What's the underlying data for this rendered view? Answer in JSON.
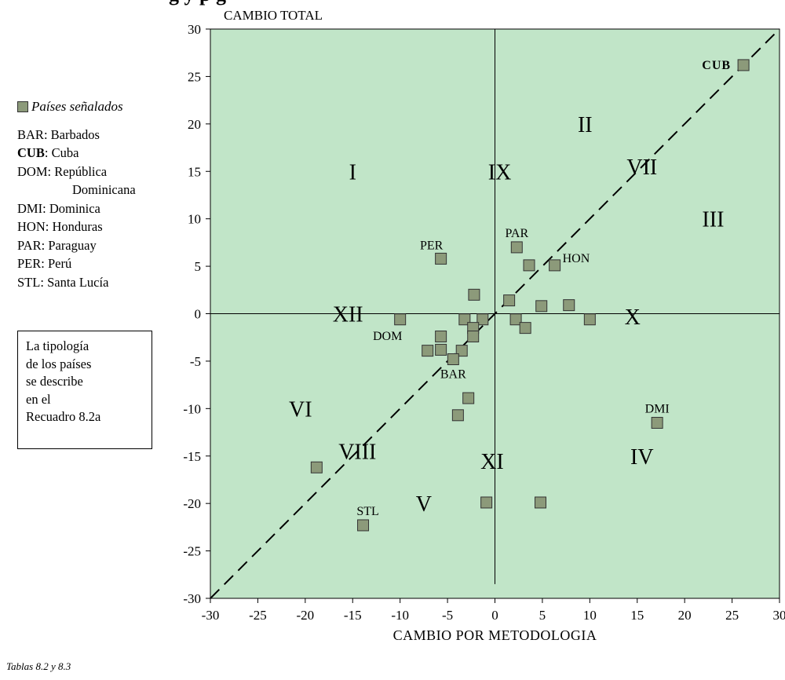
{
  "title_fragment": "g                  y    p                                          g",
  "legend": {
    "header": "Países señalados",
    "entries": [
      {
        "code": "BAR",
        "name": "Barbados",
        "bold": false
      },
      {
        "code": "CUB",
        "name": "Cuba",
        "bold": true
      },
      {
        "code": "DOM",
        "name": "República",
        "bold": false
      },
      {
        "code": "",
        "name": "Dominicana",
        "bold": false
      },
      {
        "code": "DMI",
        "name": "Dominica",
        "bold": false
      },
      {
        "code": "HON",
        "name": "Honduras",
        "bold": false
      },
      {
        "code": "PAR",
        "name": "Paraguay",
        "bold": false
      },
      {
        "code": "PER",
        "name": "Perú",
        "bold": false
      },
      {
        "code": "STL",
        "name": "Santa Lucía",
        "bold": false
      }
    ]
  },
  "note": [
    "La tipología",
    "de los países",
    "se describe",
    "en el",
    "Recuadro 8.2a"
  ],
  "source": "Tablas 8.2 y 8.3",
  "chart_data": {
    "type": "scatter",
    "ylabel": "CAMBIO TOTAL",
    "xlabel": "CAMBIO POR METODOLOGIA",
    "xlim": [
      -30,
      30
    ],
    "ylim": [
      -30,
      30
    ],
    "xticks": [
      -30,
      -25,
      -20,
      -15,
      -10,
      -5,
      0,
      5,
      10,
      15,
      20,
      25,
      30
    ],
    "yticks": [
      -30,
      -25,
      -20,
      -15,
      -10,
      -5,
      0,
      5,
      10,
      15,
      20,
      25,
      30
    ],
    "grid": false,
    "background_color": "#c1e5c8",
    "marker_color": "#8c9a7a",
    "reference_line": {
      "type": "diagonal",
      "from": [
        -30,
        -30
      ],
      "to": [
        30,
        30
      ],
      "style": "dashed"
    },
    "axes_lines": {
      "vertical_at_x": 0,
      "horizontal_at_y": 0
    },
    "region_labels": [
      {
        "text": "I",
        "x": -15,
        "y": 15
      },
      {
        "text": "II",
        "x": 9.5,
        "y": 20
      },
      {
        "text": "III",
        "x": 23,
        "y": 10
      },
      {
        "text": "IV",
        "x": 15.5,
        "y": -15
      },
      {
        "text": "V",
        "x": -7.5,
        "y": -20
      },
      {
        "text": "VI",
        "x": -20.5,
        "y": -10
      },
      {
        "text": "VII",
        "x": 15.5,
        "y": 15.5
      },
      {
        "text": "VIII",
        "x": -14.5,
        "y": -14.5
      },
      {
        "text": "IX",
        "x": 0.5,
        "y": 15
      },
      {
        "text": "X",
        "x": 14.5,
        "y": -0.3
      },
      {
        "text": "XI",
        "x": -0.3,
        "y": -15.5
      },
      {
        "text": "XII",
        "x": -15.5,
        "y": 0
      }
    ],
    "points": [
      {
        "x": 26.2,
        "y": 26.2,
        "label": "CUB",
        "bold": true
      },
      {
        "x": 2.3,
        "y": 7.0,
        "label": "PAR"
      },
      {
        "x": -5.7,
        "y": 5.8,
        "label": "PER"
      },
      {
        "x": 6.3,
        "y": 5.1,
        "label": "HON"
      },
      {
        "x": 3.6,
        "y": 5.1
      },
      {
        "x": -2.2,
        "y": 2.0
      },
      {
        "x": 1.5,
        "y": 1.4
      },
      {
        "x": 4.9,
        "y": 0.8
      },
      {
        "x": 7.8,
        "y": 0.9
      },
      {
        "x": -10.0,
        "y": -0.6,
        "label": "DOM"
      },
      {
        "x": -3.2,
        "y": -0.6
      },
      {
        "x": -1.3,
        "y": -0.6
      },
      {
        "x": 2.2,
        "y": -0.6
      },
      {
        "x": 10.0,
        "y": -0.6
      },
      {
        "x": -2.3,
        "y": -1.5
      },
      {
        "x": 3.2,
        "y": -1.5
      },
      {
        "x": -5.7,
        "y": -2.4
      },
      {
        "x": -2.3,
        "y": -2.4
      },
      {
        "x": -7.1,
        "y": -3.9
      },
      {
        "x": -5.7,
        "y": -3.8
      },
      {
        "x": -3.5,
        "y": -3.9
      },
      {
        "x": -4.4,
        "y": -4.8,
        "label": "BAR"
      },
      {
        "x": -2.8,
        "y": -8.9
      },
      {
        "x": -3.9,
        "y": -10.7
      },
      {
        "x": 17.1,
        "y": -11.5,
        "label": "DMI"
      },
      {
        "x": -18.8,
        "y": -16.2
      },
      {
        "x": -0.9,
        "y": -19.9
      },
      {
        "x": 4.8,
        "y": -19.9
      },
      {
        "x": -13.9,
        "y": -22.3,
        "label": "STL"
      }
    ]
  }
}
